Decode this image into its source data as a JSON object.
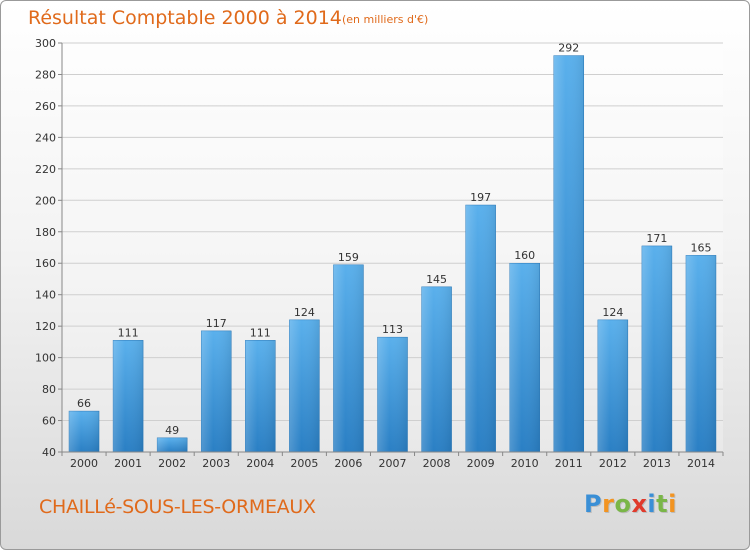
{
  "title": "Résultat Comptable 2000 à 2014",
  "unit": "(en milliers d'€)",
  "place": "CHAILLé-SOUS-LES-ORMEAUX",
  "logo": {
    "text": "Proxiti",
    "letters": [
      "P",
      "r",
      "o",
      "x",
      "i",
      "t",
      "i"
    ],
    "colors": [
      "#3a8fd6",
      "#f29422",
      "#7ab648",
      "#e03a2c",
      "#3a8fd6",
      "#7ab648",
      "#f29422"
    ]
  },
  "colors": {
    "bar_light": "#5ab0ec",
    "bar_dark": "#2a7fc4",
    "title": "#e06a1b"
  },
  "chart_data": {
    "type": "bar",
    "categories": [
      "2000",
      "2001",
      "2002",
      "2003",
      "2004",
      "2005",
      "2006",
      "2007",
      "2008",
      "2009",
      "2010",
      "2011",
      "2012",
      "2013",
      "2014"
    ],
    "values": [
      66,
      111,
      49,
      117,
      111,
      124,
      159,
      113,
      145,
      197,
      160,
      292,
      124,
      171,
      165
    ],
    "ylim": [
      40,
      300
    ],
    "yticks": [
      40,
      60,
      80,
      100,
      120,
      140,
      160,
      180,
      200,
      220,
      240,
      260,
      280,
      300
    ],
    "grid": true,
    "data_labels": true
  }
}
